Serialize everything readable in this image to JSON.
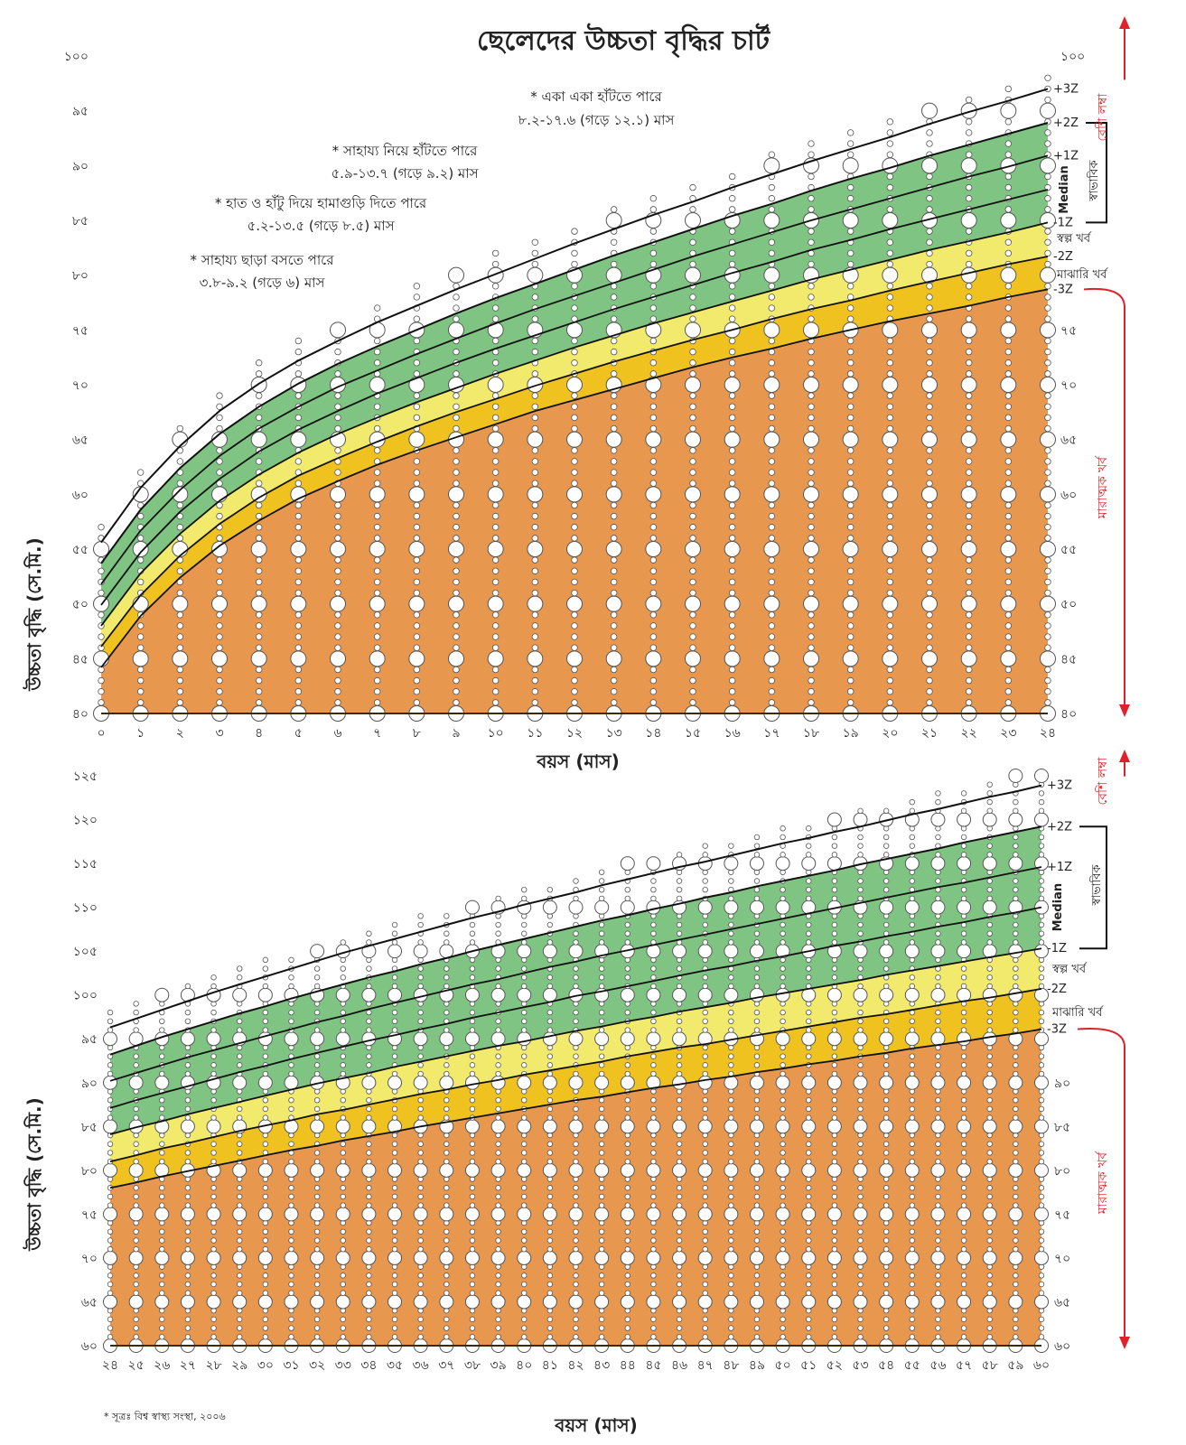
{
  "title": "ছেলেদের উচ্চতা বৃদ্ধির চার্ট",
  "footnote": "* সূত্রঃ বিশ্ব স্বাস্থ্য সংস্থা, ২০০৬",
  "milestones": [
    {
      "line1": "* সাহায্য ছাড়া বসতে পারে",
      "line2": "৩.৮-৯.২ (গড়ে ৬) মাস"
    },
    {
      "line1": "* হাত ও হাঁটু দিয়ে হামাগুড়ি দিতে পারে",
      "line2": "৫.২-১৩.৫ (গড়ে ৮.৫) মাস"
    },
    {
      "line1": "* সাহায্য নিয়ে হাঁটতে পারে",
      "line2": "৫.৯-১৩.৭ (গড়ে ৯.২) মাস"
    },
    {
      "line1": "* একা একা হাঁটতে পারে",
      "line2": "৮.২-১৭.৬ (গড়ে ১২.১) মাস"
    }
  ],
  "categories": {
    "very_tall": "বেশি লম্বা",
    "normal": "স্বাভাবিক",
    "moderately_stunted": "স্বল্প খর্ব",
    "mid_stunted": "মাঝারি খর্ব",
    "severely_stunted": "মারাত্মক খর্ব"
  },
  "colors": {
    "severe": "#e8974f",
    "moderate": "#efc21f",
    "mild": "#f1ea6c",
    "normal": "#80c483",
    "above": "#ffffff",
    "line": "#111111",
    "arrow": "#e0202a"
  },
  "chart_data": [
    {
      "type": "area",
      "xlabel": "বয়স (মাস)",
      "ylabel": "উচ্চতা বৃদ্ধি (সে.মি.)",
      "xlim": [
        0,
        24
      ],
      "ylim": [
        40,
        100
      ],
      "grid": "circle markers at every cm per month",
      "x": [
        0,
        1,
        2,
        3,
        4,
        5,
        6,
        7,
        8,
        9,
        10,
        11,
        12,
        13,
        14,
        15,
        16,
        17,
        18,
        19,
        20,
        21,
        22,
        23,
        24
      ],
      "x_tick_labels": [
        "০",
        "১",
        "২",
        "৩",
        "৪",
        "৫",
        "৬",
        "৭",
        "৮",
        "৯",
        "১০",
        "১১",
        "১২",
        "১৩",
        "১৪",
        "১৫",
        "১৬",
        "১৭",
        "১৮",
        "১৯",
        "২০",
        "২১",
        "২২",
        "২৩",
        "২৪"
      ],
      "y_ticks": [
        {
          "value": 40,
          "label": "৪০"
        },
        {
          "value": 45,
          "label": "৪৫"
        },
        {
          "value": 50,
          "label": "৫০"
        },
        {
          "value": 55,
          "label": "৫৫"
        },
        {
          "value": 60,
          "label": "৬০"
        },
        {
          "value": 65,
          "label": "৬৫"
        },
        {
          "value": 70,
          "label": "৭০"
        },
        {
          "value": 75,
          "label": "৭৫"
        },
        {
          "value": 80,
          "label": "৮০"
        },
        {
          "value": 85,
          "label": "৮৫"
        },
        {
          "value": 90,
          "label": "৯০"
        },
        {
          "value": 95,
          "label": "৯৫"
        },
        {
          "value": 100,
          "label": "১০০"
        }
      ],
      "series": [
        {
          "name": "-3Z",
          "values": [
            44.2,
            48.9,
            52.4,
            55.3,
            57.6,
            59.6,
            61.2,
            62.7,
            64.0,
            65.2,
            66.4,
            67.6,
            68.6,
            69.6,
            70.6,
            71.6,
            72.5,
            73.3,
            74.2,
            75.0,
            75.8,
            76.5,
            77.2,
            78.0,
            78.7
          ]
        },
        {
          "name": "-2Z",
          "values": [
            46.1,
            50.8,
            54.4,
            57.3,
            59.7,
            61.7,
            63.3,
            64.8,
            66.2,
            67.5,
            68.7,
            69.9,
            71.0,
            72.1,
            73.1,
            74.1,
            75.0,
            76.0,
            76.9,
            77.7,
            78.6,
            79.4,
            80.2,
            81.0,
            81.7
          ]
        },
        {
          "name": "-1Z",
          "values": [
            48.0,
            52.8,
            56.4,
            59.4,
            61.8,
            63.8,
            65.5,
            67.0,
            68.4,
            69.7,
            71.0,
            72.2,
            73.4,
            74.5,
            75.6,
            76.6,
            77.6,
            78.6,
            79.6,
            80.5,
            81.4,
            82.3,
            83.1,
            83.9,
            84.8
          ]
        },
        {
          "name": "Median",
          "values": [
            49.9,
            54.7,
            58.4,
            61.4,
            63.9,
            65.9,
            67.6,
            69.2,
            70.6,
            72.0,
            73.3,
            74.5,
            75.7,
            76.9,
            78.0,
            79.1,
            80.2,
            81.2,
            82.3,
            83.2,
            84.2,
            85.1,
            86.0,
            86.9,
            87.8
          ]
        },
        {
          "name": "+1Z",
          "values": [
            51.8,
            56.7,
            60.4,
            63.5,
            66.0,
            68.0,
            69.8,
            71.3,
            72.8,
            74.2,
            75.6,
            76.9,
            78.1,
            79.3,
            80.5,
            81.7,
            82.8,
            83.9,
            85.0,
            86.0,
            87.0,
            88.0,
            89.0,
            89.9,
            90.9
          ]
        },
        {
          "name": "+2Z",
          "values": [
            53.7,
            58.6,
            62.4,
            65.5,
            68.0,
            70.1,
            71.9,
            73.5,
            75.0,
            76.5,
            77.9,
            79.2,
            80.5,
            81.8,
            83.0,
            84.2,
            85.4,
            86.5,
            87.7,
            88.8,
            89.8,
            90.9,
            91.9,
            92.9,
            93.9
          ]
        },
        {
          "name": "+3Z",
          "values": [
            55.6,
            60.6,
            64.4,
            67.6,
            70.1,
            72.2,
            74.0,
            75.7,
            77.2,
            78.7,
            80.1,
            81.5,
            82.9,
            84.2,
            85.5,
            86.7,
            88.0,
            89.2,
            90.4,
            91.5,
            92.6,
            93.8,
            94.9,
            95.9,
            97.0
          ]
        }
      ]
    },
    {
      "type": "area",
      "xlabel": "বয়স (মাস)",
      "ylabel": "উচ্চতা বৃদ্ধি (সে.মি.)",
      "xlim": [
        24,
        60
      ],
      "ylim": [
        60,
        125
      ],
      "grid": "circle markers at every cm per month",
      "x": [
        24,
        25,
        26,
        27,
        28,
        29,
        30,
        31,
        32,
        33,
        34,
        35,
        36,
        37,
        38,
        39,
        40,
        41,
        42,
        43,
        44,
        45,
        46,
        47,
        48,
        49,
        50,
        51,
        52,
        53,
        54,
        55,
        56,
        57,
        58,
        59,
        60
      ],
      "x_tick_labels": [
        "২৪",
        "২৫",
        "২৬",
        "২৭",
        "২৮",
        "২৯",
        "৩০",
        "৩১",
        "৩২",
        "৩৩",
        "৩৪",
        "৩৫",
        "৩৬",
        "৩৭",
        "৩৮",
        "৩৯",
        "৪০",
        "৪১",
        "৪২",
        "৪৩",
        "৪৪",
        "৪৫",
        "৪৬",
        "৪৭",
        "৪৮",
        "৪৯",
        "৫০",
        "৫১",
        "৫২",
        "৫৩",
        "৫৪",
        "৫৫",
        "৫৬",
        "৫৭",
        "৫৮",
        "৫৯",
        "৬০"
      ],
      "y_ticks": [
        {
          "value": 60,
          "label": "৬০"
        },
        {
          "value": 65,
          "label": "৬৫"
        },
        {
          "value": 70,
          "label": "৭০"
        },
        {
          "value": 75,
          "label": "৭৫"
        },
        {
          "value": 80,
          "label": "৮০"
        },
        {
          "value": 85,
          "label": "৮৫"
        },
        {
          "value": 90,
          "label": "৯০"
        },
        {
          "value": 95,
          "label": "৯৫"
        },
        {
          "value": 100,
          "label": "১০০"
        },
        {
          "value": 105,
          "label": "১০৫"
        },
        {
          "value": 110,
          "label": "১১০"
        },
        {
          "value": 115,
          "label": "১১৫"
        },
        {
          "value": 120,
          "label": "১২০"
        },
        {
          "value": 125,
          "label": "১২৫"
        }
      ],
      "series": [
        {
          "name": "-3Z",
          "values": [
            78.0,
            78.6,
            79.3,
            79.9,
            80.5,
            81.1,
            81.7,
            82.3,
            82.8,
            83.4,
            83.9,
            84.4,
            85.0,
            85.5,
            86.0,
            86.5,
            87.0,
            87.5,
            88.0,
            88.4,
            88.9,
            89.4,
            89.8,
            90.3,
            90.7,
            91.2,
            91.6,
            92.1,
            92.5,
            93.0,
            93.4,
            93.9,
            94.3,
            94.7,
            95.2,
            95.6,
            96.1
          ]
        },
        {
          "name": "-2Z",
          "values": [
            81.0,
            81.7,
            82.5,
            83.1,
            83.8,
            84.5,
            85.1,
            85.7,
            86.4,
            86.9,
            87.5,
            88.1,
            88.7,
            89.2,
            89.8,
            90.3,
            90.9,
            91.4,
            91.9,
            92.4,
            93.0,
            93.5,
            94.0,
            94.4,
            94.9,
            95.4,
            95.9,
            96.4,
            96.9,
            97.4,
            97.8,
            98.3,
            98.8,
            99.3,
            99.7,
            100.2,
            100.7
          ]
        },
        {
          "name": "-1Z",
          "values": [
            84.1,
            84.9,
            85.6,
            86.4,
            87.1,
            87.8,
            88.5,
            89.2,
            89.9,
            90.5,
            91.1,
            91.8,
            92.4,
            93.0,
            93.6,
            94.2,
            94.7,
            95.3,
            95.9,
            96.4,
            97.0,
            97.5,
            98.1,
            98.6,
            99.1,
            99.7,
            100.2,
            100.7,
            101.2,
            101.7,
            102.3,
            102.8,
            103.3,
            103.8,
            104.3,
            104.8,
            105.3
          ]
        },
        {
          "name": "Median",
          "values": [
            87.1,
            88.0,
            88.8,
            89.6,
            90.4,
            91.2,
            91.9,
            92.7,
            93.4,
            94.1,
            94.8,
            95.4,
            96.1,
            96.7,
            97.4,
            98.0,
            98.6,
            99.2,
            99.9,
            100.4,
            101.0,
            101.6,
            102.2,
            102.8,
            103.3,
            103.9,
            104.4,
            105.0,
            105.6,
            106.1,
            106.7,
            107.2,
            107.8,
            108.3,
            108.9,
            109.4,
            110.0
          ]
        },
        {
          "name": "+1Z",
          "values": [
            90.2,
            91.1,
            92.0,
            92.9,
            93.7,
            94.5,
            95.3,
            96.1,
            96.9,
            97.6,
            98.4,
            99.1,
            99.8,
            100.5,
            101.2,
            101.8,
            102.5,
            103.2,
            103.8,
            104.5,
            105.1,
            105.7,
            106.3,
            106.9,
            107.5,
            108.1,
            108.7,
            109.3,
            109.9,
            110.5,
            111.1,
            111.7,
            112.3,
            112.8,
            113.4,
            114.0,
            114.6
          ]
        },
        {
          "name": "+2Z",
          "values": [
            93.2,
            94.2,
            95.2,
            96.1,
            97.0,
            97.9,
            98.7,
            99.6,
            100.4,
            101.2,
            102.0,
            102.7,
            103.5,
            104.2,
            105.0,
            105.7,
            106.4,
            107.1,
            107.8,
            108.5,
            109.1,
            109.8,
            110.4,
            111.1,
            111.7,
            112.4,
            113.0,
            113.6,
            114.2,
            114.9,
            115.5,
            116.1,
            116.7,
            117.4,
            118.0,
            118.6,
            119.2
          ]
        },
        {
          "name": "+3Z",
          "values": [
            96.3,
            97.3,
            98.3,
            99.3,
            100.3,
            101.2,
            102.1,
            103.0,
            103.9,
            104.8,
            105.6,
            106.4,
            107.2,
            108.0,
            108.8,
            109.5,
            110.3,
            111.0,
            111.7,
            112.5,
            113.2,
            113.9,
            114.6,
            115.2,
            115.9,
            116.6,
            117.3,
            117.9,
            118.6,
            119.2,
            119.9,
            120.6,
            121.2,
            121.9,
            122.6,
            123.2,
            123.9
          ]
        }
      ]
    }
  ]
}
